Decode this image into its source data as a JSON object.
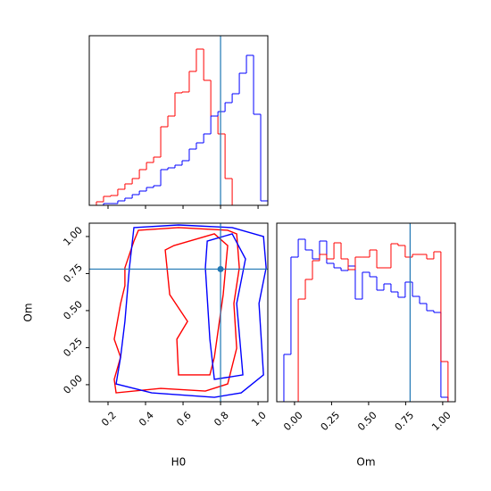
{
  "chart_data": [
    {
      "type": "histogram",
      "xlim": [
        0.1,
        1.052
      ],
      "ylim": [
        0,
        190
      ],
      "xticks": [
        0.2,
        0.4,
        0.6,
        0.8,
        1
      ],
      "bins": [
        0.1,
        0.138,
        0.176,
        0.214,
        0.252,
        0.29,
        0.329,
        0.367,
        0.405,
        0.443,
        0.481,
        0.519,
        0.557,
        0.595,
        0.633,
        0.671,
        0.71,
        0.748,
        0.786,
        0.824,
        0.862,
        0.9,
        0.938,
        0.976,
        1.014,
        1.052
      ],
      "series": [
        {
          "color": "#ff0000",
          "values": [
            0,
            4,
            10,
            11,
            18,
            24,
            30,
            40,
            48,
            54,
            88,
            100,
            126,
            127,
            150,
            175,
            140,
            100,
            80,
            30,
            0,
            0,
            0,
            0,
            0
          ]
        },
        {
          "color": "#0000ff",
          "values": [
            0,
            0,
            2,
            2,
            5,
            8,
            12,
            16,
            20,
            22,
            40,
            42,
            45,
            50,
            63,
            70,
            80,
            100,
            105,
            115,
            125,
            148,
            168,
            102,
            5
          ]
        }
      ],
      "truth": 0.8,
      "truth_color": "#1f77b4"
    },
    {
      "type": "contour",
      "xlabel": "H0",
      "ylabel": "Om",
      "xlim": [
        0.1,
        1.052
      ],
      "ylim": [
        -0.115,
        1.09
      ],
      "xticks": [
        0.2,
        0.4,
        0.6,
        0.8,
        {
          "value": 1,
          "label": "1.0"
        }
      ],
      "yticks": [
        {
          "value": 0,
          "label": "0.00"
        },
        0.25,
        {
          "value": 0.5,
          "label": "0.50"
        },
        0.75,
        {
          "value": 1,
          "label": "1.00"
        }
      ],
      "series": [
        {
          "color": "#ff0000",
          "x": [
            0.362,
            0.576,
            0.838,
            0.886,
            0.9,
            0.871,
            0.886,
            0.838,
            0.719,
            0.481,
            0.243,
            0.233,
            0.267,
            0.233,
            0.267,
            0.29,
            0.29,
            0.338
          ],
          "y": [
            1.042,
            1.06,
            1.042,
            1.018,
            0.789,
            0.548,
            0.246,
            0.005,
            -0.043,
            -0.025,
            -0.055,
            0.036,
            0.186,
            0.307,
            0.548,
            0.668,
            0.789,
            0.969
          ]
        },
        {
          "color": "#ff0000",
          "x": [
            0.552,
            0.767,
            0.838,
            0.814,
            0.767,
            0.743,
            0.576,
            0.567,
            0.624,
            0.529,
            0.505
          ],
          "y": [
            0.939,
            1.018,
            0.939,
            0.608,
            0.186,
            0.066,
            0.066,
            0.307,
            0.427,
            0.608,
            0.909
          ]
        },
        {
          "color": "#0000ff",
          "x": [
            0.338,
            0.576,
            0.862,
            1.029,
            1.043,
            1.005,
            1.029,
            0.91,
            0.767,
            0.433,
            0.243,
            0.267,
            0.29,
            0.314
          ],
          "y": [
            1.06,
            1.078,
            1.06,
            1.0,
            0.789,
            0.548,
            0.066,
            -0.055,
            -0.085,
            -0.055,
            0.005,
            0.186,
            0.427,
            0.789
          ]
        },
        {
          "color": "#0000ff",
          "x": [
            0.729,
            0.862,
            0.933,
            0.886,
            0.919,
            0.767,
            0.743,
            0.719
          ],
          "y": [
            0.969,
            1.018,
            0.849,
            0.548,
            0.066,
            0.036,
            0.307,
            0.789
          ]
        }
      ],
      "truth_x": 0.8,
      "truth_y": 0.78,
      "truth_color": "#1f77b4"
    },
    {
      "type": "histogram",
      "xlabel": "Om",
      "xlim": [
        -0.12,
        1.085
      ],
      "ylim": [
        0,
        200
      ],
      "xticks": [
        {
          "value": 0,
          "label": "0.00"
        },
        0.25,
        {
          "value": 0.5,
          "label": "0.50"
        },
        0.75,
        {
          "value": 1,
          "label": "1.00"
        }
      ],
      "bins": [
        -0.12,
        -0.072,
        -0.024,
        0.025,
        0.073,
        0.121,
        0.169,
        0.217,
        0.266,
        0.314,
        0.362,
        0.41,
        0.458,
        0.507,
        0.555,
        0.603,
        0.651,
        0.699,
        0.747,
        0.796,
        0.844,
        0.892,
        0.94,
        0.988,
        1.036,
        1.085
      ],
      "series": [
        {
          "color": "#0000ff",
          "values": [
            0,
            53,
            162,
            182,
            170,
            160,
            180,
            155,
            150,
            147,
            152,
            115,
            145,
            140,
            125,
            132,
            123,
            117,
            134,
            118,
            110,
            102,
            100,
            5,
            0
          ]
        },
        {
          "color": "#ff0000",
          "values": [
            0,
            0,
            0,
            115,
            137,
            158,
            165,
            160,
            178,
            160,
            148,
            162,
            162,
            170,
            150,
            150,
            177,
            175,
            162,
            165,
            165,
            160,
            168,
            45,
            0
          ]
        }
      ],
      "truth": 0.78,
      "truth_color": "#1f77b4",
      "label_ticks": true
    }
  ]
}
